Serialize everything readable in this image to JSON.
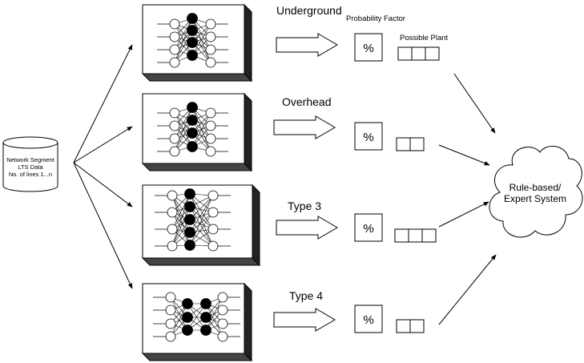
{
  "database": {
    "lines": [
      "Network Segment",
      "LTS Data",
      "No. of lines 1...n"
    ]
  },
  "header": {
    "probability_label": "Probability Factor",
    "plant_label": "Possible Plant"
  },
  "networks": [
    {
      "label": "Underground",
      "percent": "%",
      "plant_cells": 3
    },
    {
      "label": "Overhead",
      "percent": "%",
      "plant_cells": 2
    },
    {
      "label": "Type 3",
      "percent": "%",
      "plant_cells": 3
    },
    {
      "label": "Type 4",
      "percent": "%",
      "plant_cells": 2
    }
  ],
  "expert_system": {
    "lines": [
      "Rule-based/",
      "Expert System"
    ]
  }
}
